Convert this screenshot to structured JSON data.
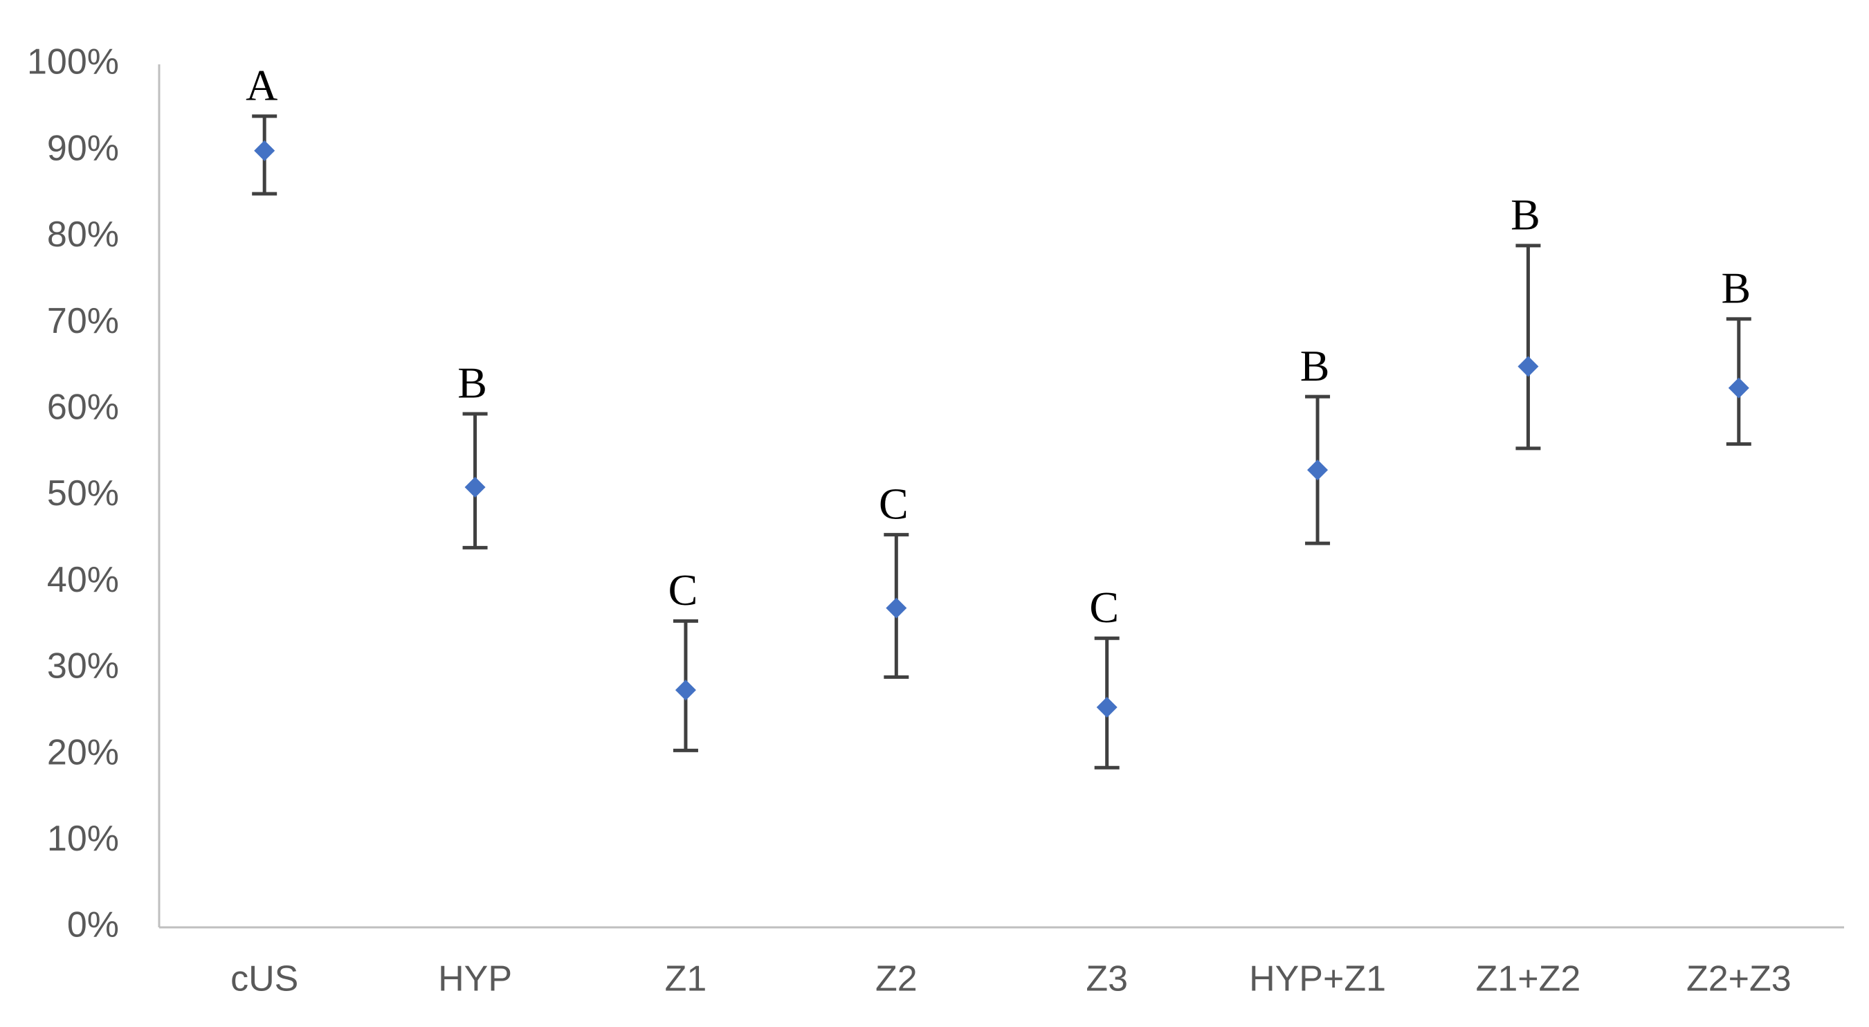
{
  "chart_data": {
    "type": "scatter",
    "title": "",
    "xlabel": "",
    "ylabel": "",
    "categories": [
      "cUS",
      "HYP",
      "Z1",
      "Z2",
      "Z3",
      "HYP+Z1",
      "Z1+Z2",
      "Z2+Z3"
    ],
    "ylim": [
      0,
      100
    ],
    "yticks": [
      0,
      10,
      20,
      30,
      40,
      50,
      60,
      70,
      80,
      90,
      100
    ],
    "ytick_labels": [
      "0%",
      "10%",
      "20%",
      "30%",
      "40%",
      "50%",
      "60%",
      "70%",
      "80%",
      "90%",
      "100%"
    ],
    "grid": false,
    "legend": "none",
    "series": [
      {
        "values": [
          90,
          51,
          27.5,
          37,
          25.5,
          53,
          65,
          62.5
        ],
        "error_low": [
          85,
          44,
          20.5,
          29,
          18.5,
          44.5,
          55.5,
          56
        ],
        "error_high": [
          94,
          59.5,
          35.5,
          45.5,
          33.5,
          61.5,
          79,
          70.5
        ],
        "annotations": [
          "A",
          "B",
          "C",
          "C",
          "C",
          "B",
          "B",
          "B"
        ]
      }
    ],
    "colors": {
      "marker": "#4472C4",
      "errorbar": "#404040",
      "axis": "#BFBFBF",
      "tick_text": "#595959",
      "annotation_text": "#000000"
    }
  }
}
